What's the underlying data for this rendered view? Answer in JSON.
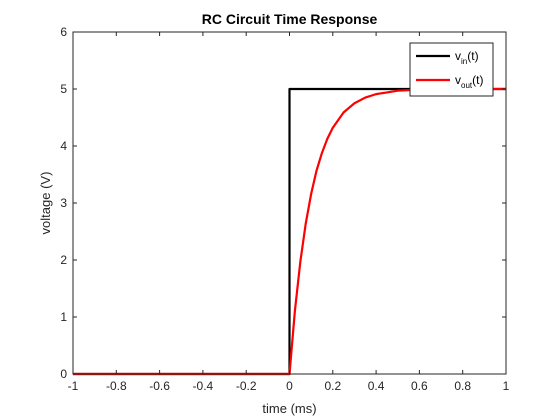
{
  "chart_data": {
    "type": "line",
    "title": "RC Circuit Time Response",
    "xlabel": "time (ms)",
    "ylabel": "voltage (V)",
    "xlim": [
      -1,
      1
    ],
    "ylim": [
      0,
      6
    ],
    "xticks": [
      -1,
      -0.8,
      -0.6,
      -0.4,
      -0.2,
      0,
      0.2,
      0.4,
      0.6,
      0.8,
      1
    ],
    "xtick_labels": [
      "-1",
      "-0.8",
      "-0.6",
      "-0.4",
      "-0.2",
      "0",
      "0.2",
      "0.4",
      "0.6",
      "0.8",
      "1"
    ],
    "yticks": [
      0,
      1,
      2,
      3,
      4,
      5,
      6
    ],
    "ytick_labels": [
      "0",
      "1",
      "2",
      "3",
      "4",
      "5",
      "6"
    ],
    "grid": false,
    "legend_position": "top-right",
    "series": [
      {
        "legend_base": "v",
        "legend_sub": "in",
        "legend_suffix": "(t)",
        "color": "#000000",
        "x": [
          -1,
          0,
          0,
          1
        ],
        "y": [
          0,
          0,
          5,
          5
        ]
      },
      {
        "legend_base": "v",
        "legend_sub": "out",
        "legend_suffix": "(t)",
        "color": "#ff0000",
        "x": [
          -1,
          0,
          0.025,
          0.05,
          0.075,
          0.1,
          0.125,
          0.15,
          0.175,
          0.2,
          0.25,
          0.3,
          0.35,
          0.4,
          0.45,
          0.5,
          0.55,
          0.6,
          0.7,
          0.8,
          0.9,
          1
        ],
        "y": [
          0,
          0,
          1.11,
          1.97,
          2.64,
          3.16,
          3.57,
          3.88,
          4.13,
          4.32,
          4.59,
          4.75,
          4.85,
          4.91,
          4.94,
          4.97,
          4.98,
          4.99,
          5.0,
          5.0,
          5.0,
          5.0
        ]
      }
    ]
  }
}
